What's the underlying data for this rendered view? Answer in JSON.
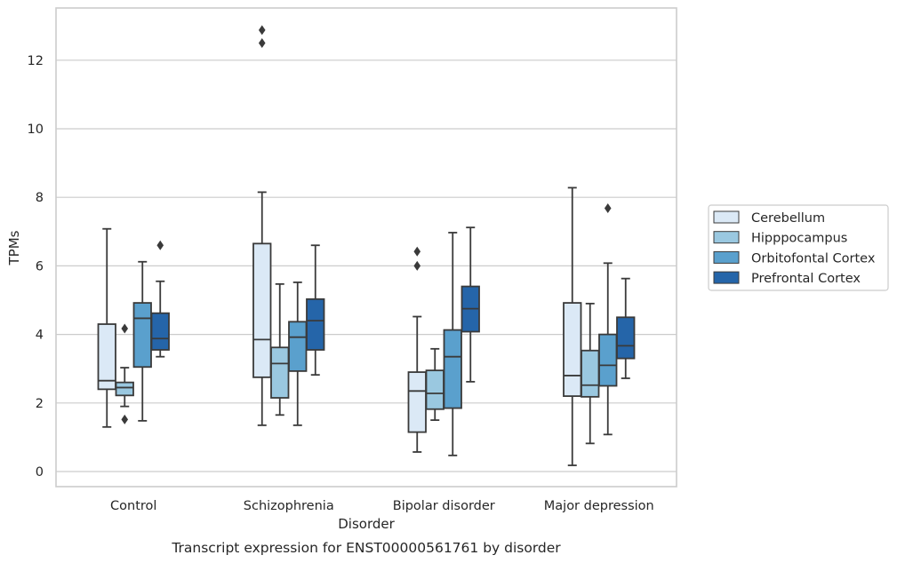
{
  "chart_data": {
    "type": "box",
    "title": "Transcript expression for ENST00000561761 by disorder",
    "xlabel": "Disorder",
    "ylabel": "TPMs",
    "ylim": [
      -0.4,
      13.6
    ],
    "yticks": [
      0,
      2,
      4,
      6,
      8,
      10,
      12
    ],
    "grid": "horizontal",
    "legend_position": "right",
    "categories": [
      "Control",
      "Schizophrenia",
      "Bipolar disorder",
      "Major depression"
    ],
    "series": [
      {
        "name": "Cerebellum",
        "color": "#dbe9f6",
        "boxes": [
          {
            "whisker_low": 1.3,
            "q1": 2.4,
            "median": 2.65,
            "q3": 4.3,
            "whisker_high": 7.08,
            "outliers": []
          },
          {
            "whisker_low": 1.35,
            "q1": 2.75,
            "median": 3.85,
            "q3": 6.65,
            "whisker_high": 8.15,
            "outliers": [
              12.5,
              12.88
            ]
          },
          {
            "whisker_low": 0.57,
            "q1": 1.15,
            "median": 2.35,
            "q3": 2.9,
            "whisker_high": 4.52,
            "outliers": [
              6.0,
              6.42
            ]
          },
          {
            "whisker_low": 0.18,
            "q1": 2.2,
            "median": 2.8,
            "q3": 4.92,
            "whisker_high": 8.28,
            "outliers": []
          }
        ]
      },
      {
        "name": "Hipppocampus",
        "color": "#9ac8e0",
        "boxes": [
          {
            "whisker_low": 1.9,
            "q1": 2.22,
            "median": 2.45,
            "q3": 2.6,
            "whisker_high": 3.03,
            "outliers": [
              1.52,
              4.17
            ]
          },
          {
            "whisker_low": 1.65,
            "q1": 2.15,
            "median": 3.15,
            "q3": 3.62,
            "whisker_high": 5.47,
            "outliers": []
          },
          {
            "whisker_low": 1.5,
            "q1": 1.82,
            "median": 2.28,
            "q3": 2.95,
            "whisker_high": 3.58,
            "outliers": []
          },
          {
            "whisker_low": 0.82,
            "q1": 2.18,
            "median": 2.52,
            "q3": 3.53,
            "whisker_high": 4.9,
            "outliers": []
          }
        ]
      },
      {
        "name": "Orbitofontal Cortex",
        "color": "#5aa0cd",
        "boxes": [
          {
            "whisker_low": 1.48,
            "q1": 3.05,
            "median": 4.47,
            "q3": 4.92,
            "whisker_high": 6.12,
            "outliers": []
          },
          {
            "whisker_low": 1.35,
            "q1": 2.93,
            "median": 3.92,
            "q3": 4.37,
            "whisker_high": 5.52,
            "outliers": []
          },
          {
            "whisker_low": 0.47,
            "q1": 1.85,
            "median": 3.35,
            "q3": 4.13,
            "whisker_high": 6.97,
            "outliers": []
          },
          {
            "whisker_low": 1.08,
            "q1": 2.5,
            "median": 3.1,
            "q3": 4.0,
            "whisker_high": 6.08,
            "outliers": [
              7.68
            ]
          }
        ]
      },
      {
        "name": "Prefrontal Cortex",
        "color": "#2565a9",
        "boxes": [
          {
            "whisker_low": 3.35,
            "q1": 3.55,
            "median": 3.88,
            "q3": 4.62,
            "whisker_high": 5.55,
            "outliers": [
              6.6
            ]
          },
          {
            "whisker_low": 2.82,
            "q1": 3.55,
            "median": 4.4,
            "q3": 5.03,
            "whisker_high": 6.6,
            "outliers": []
          },
          {
            "whisker_low": 2.62,
            "q1": 4.08,
            "median": 4.75,
            "q3": 5.4,
            "whisker_high": 7.12,
            "outliers": []
          },
          {
            "whisker_low": 2.72,
            "q1": 3.3,
            "median": 3.67,
            "q3": 4.5,
            "whisker_high": 5.63,
            "outliers": []
          }
        ]
      }
    ]
  }
}
